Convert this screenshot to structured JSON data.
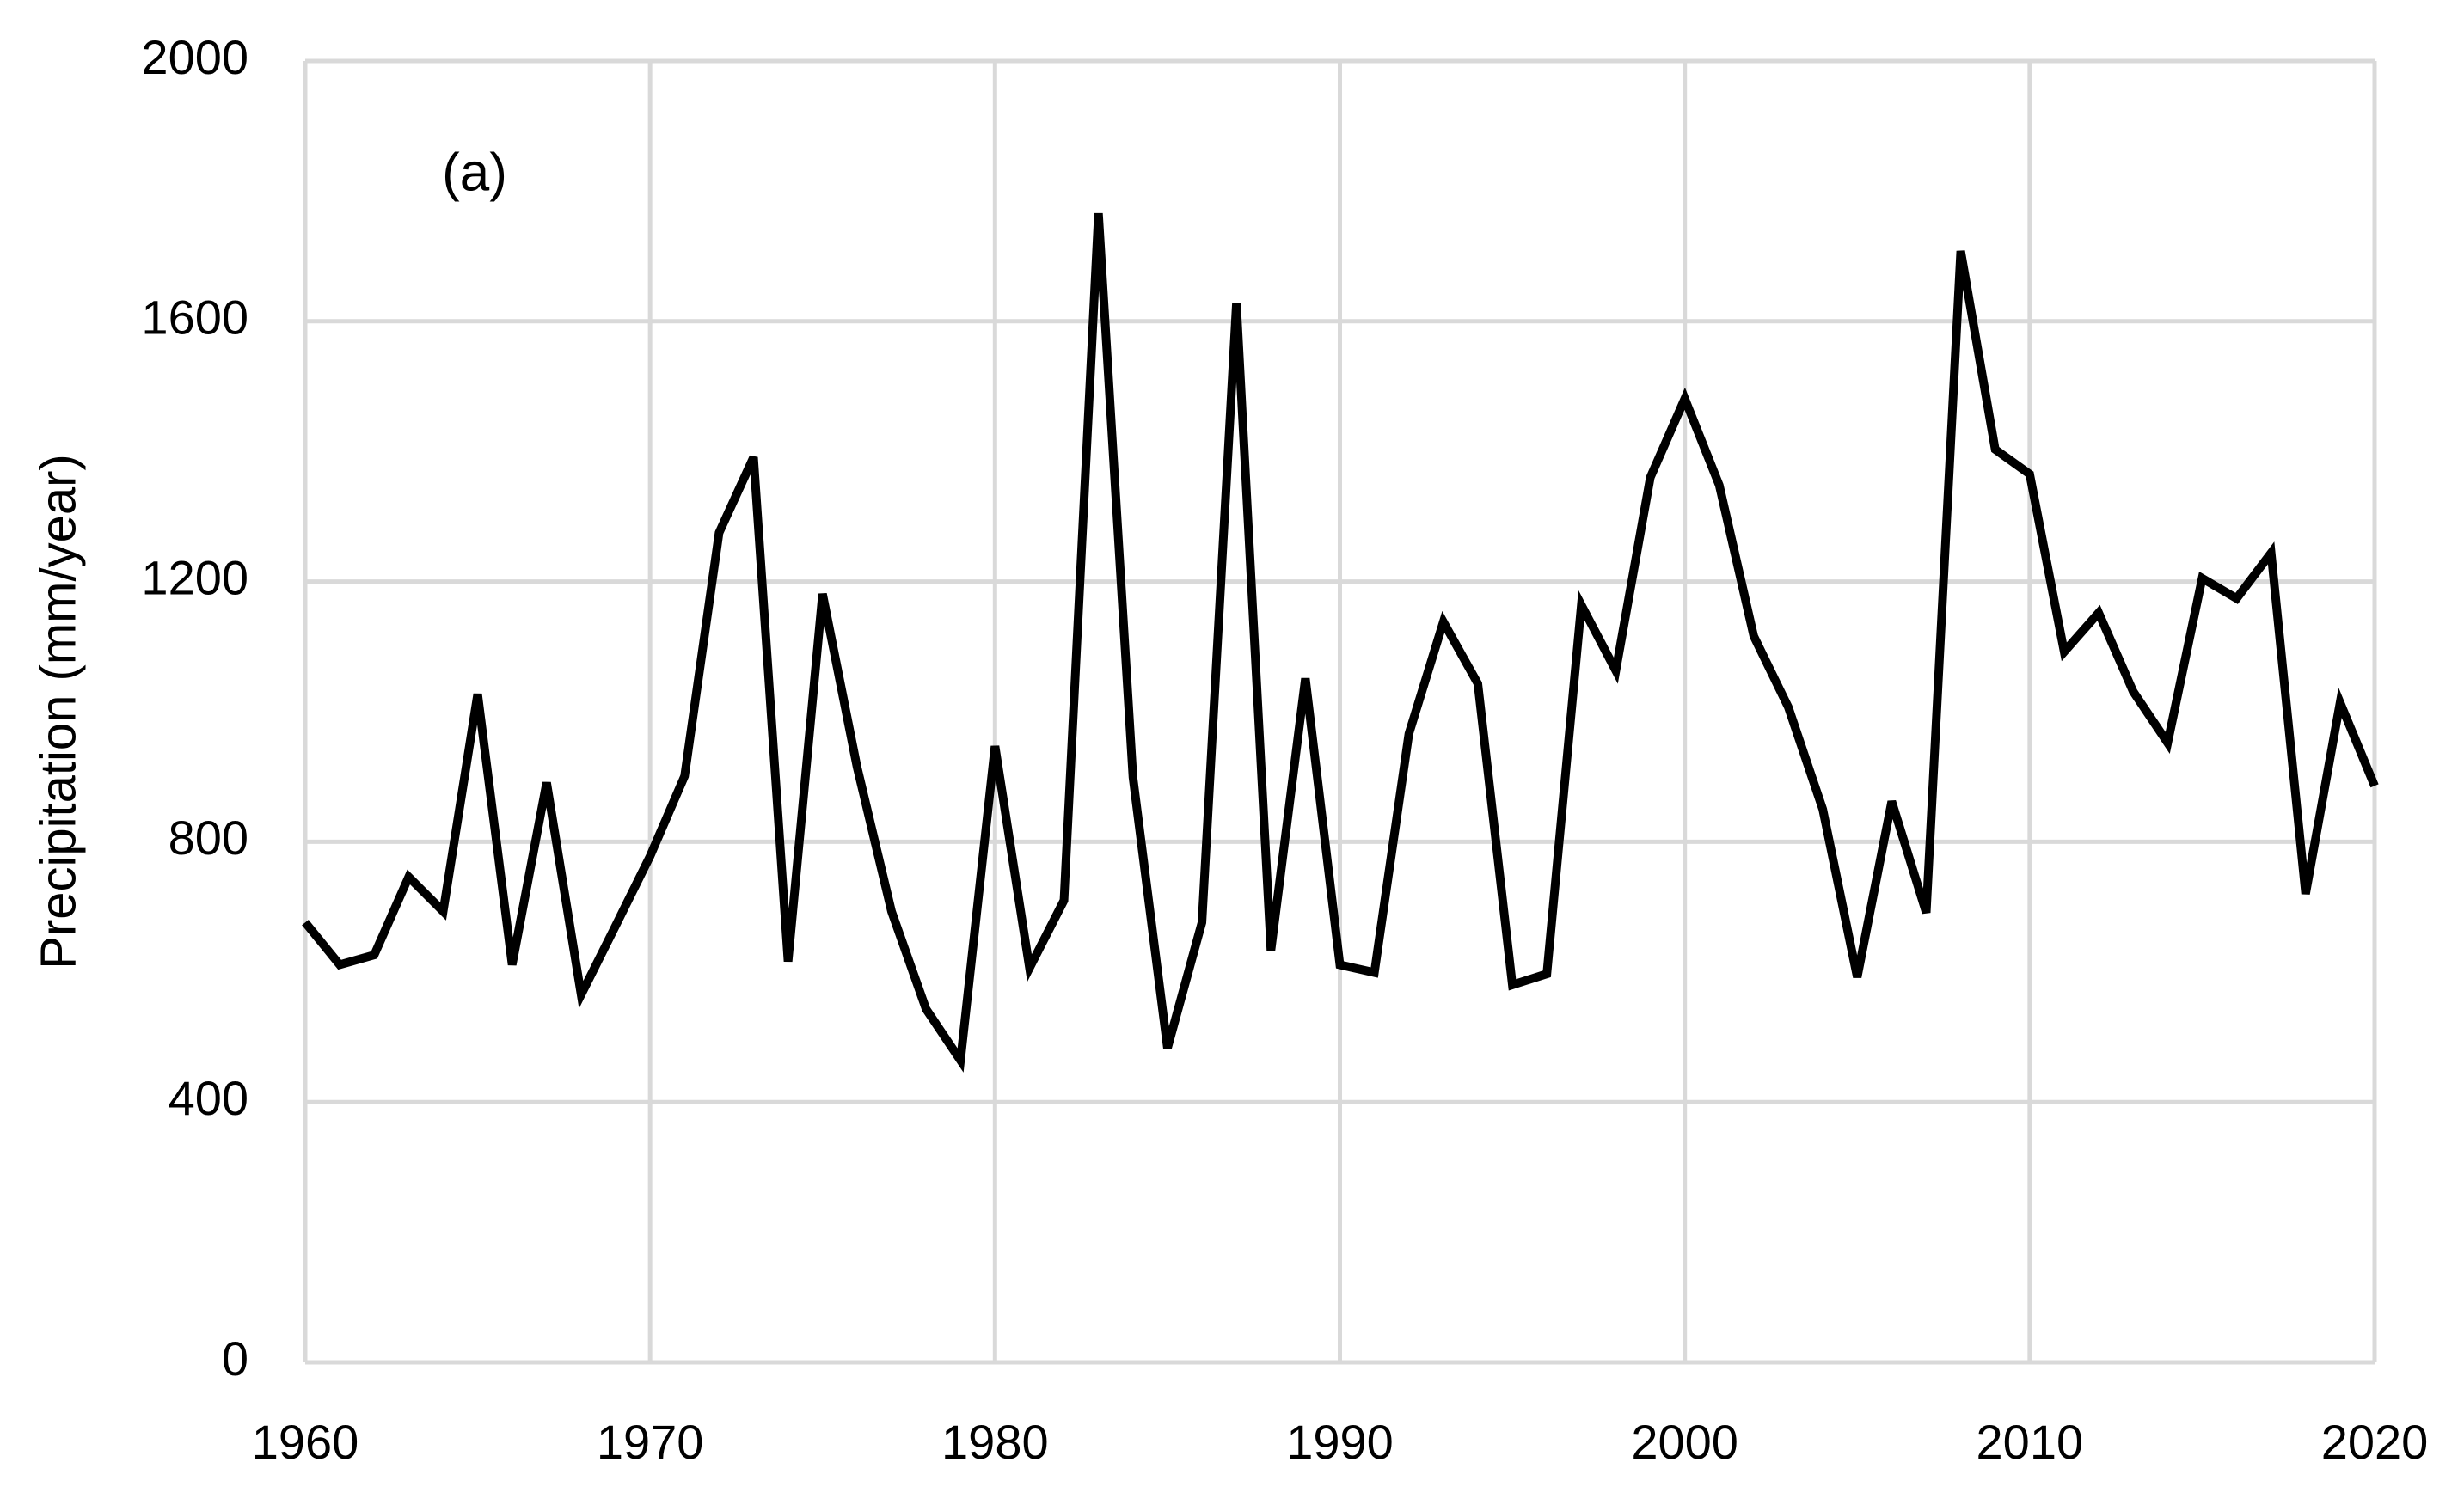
{
  "chart_data": {
    "type": "line",
    "annotation": "(a)",
    "y_label": "Precipitation  (mm/year)",
    "x": [
      1960,
      1961,
      1962,
      1963,
      1964,
      1965,
      1966,
      1967,
      1968,
      1969,
      1970,
      1971,
      1972,
      1973,
      1974,
      1975,
      1976,
      1977,
      1978,
      1979,
      1980,
      1981,
      1982,
      1983,
      1984,
      1985,
      1986,
      1987,
      1988,
      1989,
      1990,
      1991,
      1992,
      1993,
      1994,
      1995,
      1996,
      1997,
      1998,
      1999,
      2000,
      2001,
      2002,
      2003,
      2004,
      2005,
      2006,
      2007,
      2008,
      2009,
      2010,
      2011,
      2012,
      2013,
      2014,
      2015,
      2016,
      2017,
      2018,
      2019,
      2020
    ],
    "series": [
      {
        "color": "#000000",
        "values": [
          676,
          611,
          626,
          746,
          693,
          1027,
          611,
          891,
          565,
          671,
          778,
          901,
          1275,
          1391,
          616,
          1181,
          915,
          693,
          543,
          464,
          947,
          606,
          710,
          1766,
          899,
          483,
          676,
          1628,
          633,
          1051,
          611,
          599,
          966,
          1138,
          1043,
          580,
          597,
          1164,
          1063,
          1360,
          1481,
          1348,
          1116,
          1007,
          850,
          592,
          862,
          691,
          1708,
          1403,
          1365,
          1092,
          1152,
          1031,
          952,
          1205,
          1174,
          1244,
          720,
          1014,
          886
        ]
      }
    ],
    "xlim": [
      1960,
      2020
    ],
    "xticks": [
      1960,
      1970,
      1980,
      1990,
      2000,
      2010,
      2020
    ],
    "ylim": [
      0,
      2000
    ],
    "yticks": [
      0,
      400,
      800,
      1200,
      1600,
      2000
    ],
    "grid": true
  }
}
